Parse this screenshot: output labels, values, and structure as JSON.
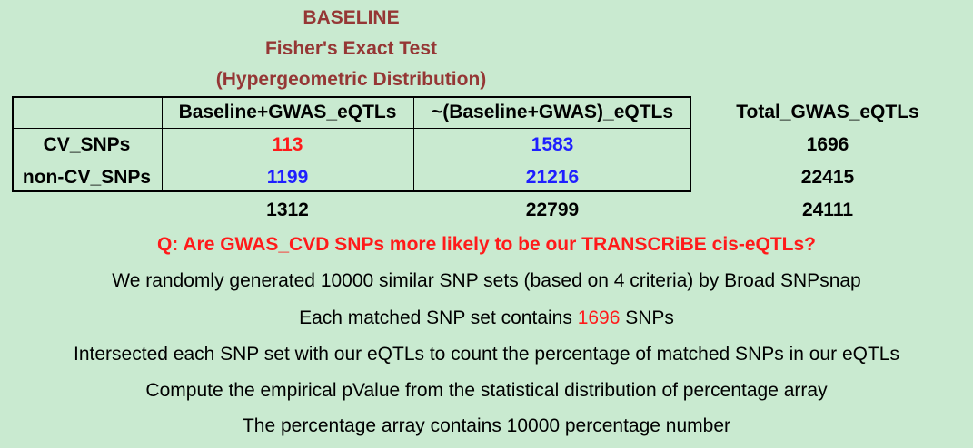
{
  "title_lines": [
    "BASELINE",
    "Fisher's Exact Test",
    "(Hypergeometric Distribution)"
  ],
  "table": {
    "header": [
      "",
      "Baseline+GWAS_eQTLs",
      "~(Baseline+GWAS)_eQTLs",
      "Total_GWAS_eQTLs"
    ],
    "rows": [
      {
        "label": "CV_SNPs",
        "values": [
          "113",
          "1583",
          "1696"
        ]
      },
      {
        "label": "non-CV_SNPs",
        "values": [
          "1199",
          "21216",
          "22415"
        ]
      },
      {
        "label": "",
        "values": [
          "1312",
          "22799",
          "24111"
        ]
      }
    ],
    "colors": {
      "highlight_red": "#ff1a1a",
      "highlight_blue": "#1f1fff"
    }
  },
  "question": "Q: Are GWAS_CVD SNPs more likely to be our TRANSCRiBE cis-eQTLs?",
  "lines": {
    "l1": "We randomly generated 10000 similar SNP sets (based on 4 criteria) by Broad SNPsnap",
    "l2_prefix": "Each matched SNP set contains ",
    "l2_number": "1696",
    "l2_suffix": " SNPs",
    "l3": "Intersected each SNP set with our eQTLs to count the percentage of matched SNPs in our eQTLs",
    "l4": "Compute the empirical pValue from the statistical distribution of percentage array",
    "l5": "The percentage array contains 10000 percentage number"
  },
  "colors": {
    "background": "#c9ead0",
    "title": "#953735"
  }
}
